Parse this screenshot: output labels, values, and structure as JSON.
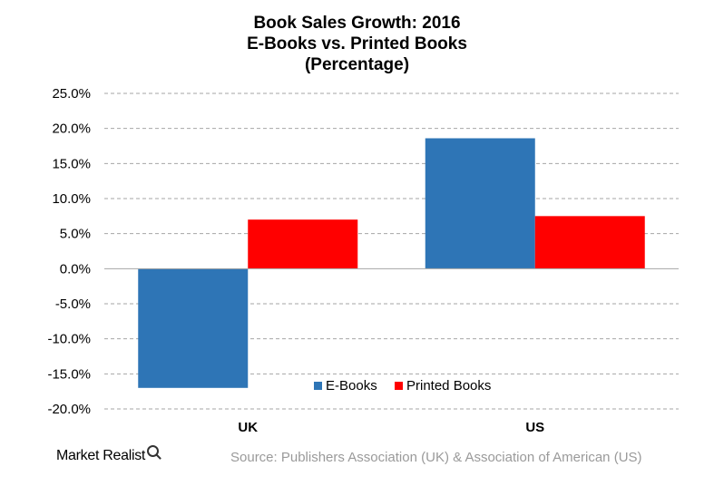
{
  "chart_data": {
    "type": "bar",
    "title": [
      "Book Sales Growth: 2016",
      "E-Books vs. Printed Books",
      "(Percentage)"
    ],
    "categories": [
      "UK",
      "US"
    ],
    "series": [
      {
        "name": "E-Books",
        "values": [
          -17.0,
          18.6
        ],
        "color": "#2e75b6"
      },
      {
        "name": "Printed Books",
        "values": [
          7.0,
          7.5
        ],
        "color": "#ff0000"
      }
    ],
    "ylim": [
      -20,
      25
    ],
    "yticks": [
      "25.0%",
      "20.0%",
      "15.0%",
      "10.0%",
      "5.0%",
      "0.0%",
      "-5.0%",
      "-10.0%",
      "-15.0%",
      "-20.0%"
    ],
    "ytick_values": [
      25,
      20,
      15,
      10,
      5,
      0,
      -5,
      -10,
      -15,
      -20
    ],
    "grid": true,
    "legend_position": "bottom-center"
  },
  "footer": {
    "brand": "Market Realist",
    "source": "Source:  Publishers Association (UK) & Association of American (US)"
  }
}
